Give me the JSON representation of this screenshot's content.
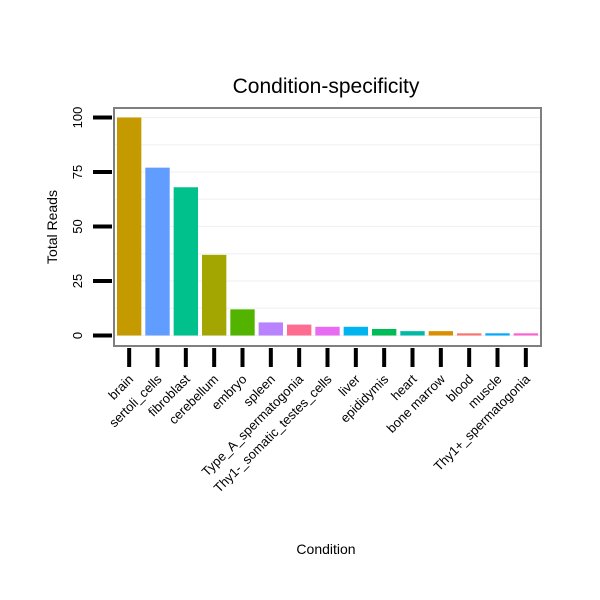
{
  "chart_data": {
    "type": "bar",
    "title": "Condition-specificity",
    "xlabel": "Condition",
    "ylabel": "Total Reads",
    "ylim": [
      0,
      105
    ],
    "yticks": [
      "0",
      "25",
      "50",
      "75",
      "100"
    ],
    "grid": true,
    "legend": "none",
    "categories": [
      "brain",
      "sertoli_cells",
      "fibroblast",
      "cerebellum",
      "embryo",
      "spleen",
      "Type_A_spermatogonia",
      "Thy1-_somatic_testes_cells",
      "liver",
      "epididymis",
      "heart",
      "bone marrow",
      "blood",
      "muscle",
      "Thy1+_spermatogonia"
    ],
    "values": [
      100,
      77,
      68,
      37,
      12,
      6,
      5,
      4,
      4,
      3,
      2,
      2,
      1,
      1,
      1
    ],
    "colors": [
      "#C49A00",
      "#619CFF",
      "#00C08B",
      "#A3A500",
      "#53B400",
      "#B983FF",
      "#FF6C91",
      "#E76BF3",
      "#00B4EF",
      "#00BC56",
      "#00BAA6",
      "#D89000",
      "#F8766D",
      "#00A9FF",
      "#FD61D1"
    ]
  }
}
